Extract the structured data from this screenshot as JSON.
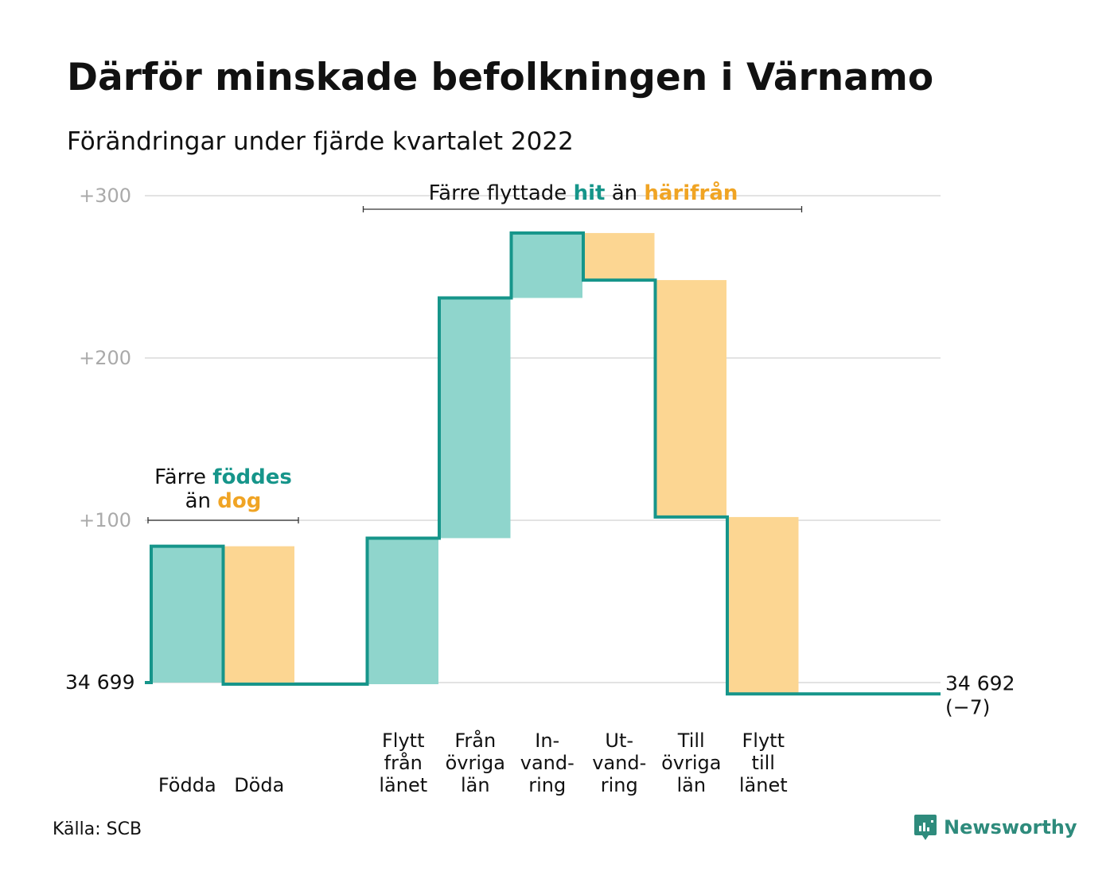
{
  "title": "Därför minskade befolkningen i Värnamo",
  "subtitle": "Förändringar under fjärde kvartalet 2022",
  "source": "Källa: SCB",
  "brand": "Newsworthy",
  "colors": {
    "line": "#16958a",
    "increase": "#8fd5cc",
    "decrease": "#fcd692",
    "teal_text": "#16958a",
    "orange_text": "#f0a424",
    "grid": "#e3e3e3",
    "tick": "#aaaaaa"
  },
  "icons": {
    "brand_logo": "newsworthy-logo-icon"
  },
  "chart_data": {
    "type": "waterfall",
    "title": "Därför minskade befolkningen i Värnamo",
    "subtitle": "Förändringar under fjärde kvartalet 2022",
    "yticks": [
      {
        "value": 100,
        "label": "+100"
      },
      {
        "value": 200,
        "label": "+200"
      },
      {
        "value": 300,
        "label": "+300"
      }
    ],
    "ylim": [
      -10,
      305
    ],
    "start": {
      "population": 34699,
      "label": "34 699"
    },
    "end": {
      "population": 34692,
      "label": "34 692",
      "change_label": "(−7)"
    },
    "steps": [
      {
        "name": "Födda",
        "label_lines": [
          "Födda"
        ],
        "value": 84,
        "kind": "increase"
      },
      {
        "name": "Döda",
        "label_lines": [
          "Döda"
        ],
        "value": -85,
        "kind": "decrease"
      },
      {
        "name": "gap",
        "label_lines": [],
        "value": 0,
        "kind": "gap"
      },
      {
        "name": "Flytt från länet",
        "label_lines": [
          "Flytt",
          "från",
          "länet"
        ],
        "value": 90,
        "kind": "increase"
      },
      {
        "name": "Från övriga län",
        "label_lines": [
          "Från",
          "övriga",
          "län"
        ],
        "value": 148,
        "kind": "increase"
      },
      {
        "name": "Invandring",
        "label_lines": [
          "In-",
          "vand-",
          "ring"
        ],
        "value": 40,
        "kind": "increase"
      },
      {
        "name": "Utvandring",
        "label_lines": [
          "Ut-",
          "vand-",
          "ring"
        ],
        "value": -29,
        "kind": "decrease"
      },
      {
        "name": "Till övriga län",
        "label_lines": [
          "Till",
          "övriga",
          "län"
        ],
        "value": -146,
        "kind": "decrease"
      },
      {
        "name": "Flytt till länet",
        "label_lines": [
          "Flytt",
          "till",
          "länet"
        ],
        "value": -109,
        "kind": "decrease"
      }
    ],
    "annotations": [
      {
        "id": "births",
        "line1": [
          {
            "text": "Färre ",
            "style": "plain"
          },
          {
            "text": "föddes",
            "style": "teal"
          }
        ],
        "line2": [
          {
            "text": "än ",
            "style": "plain"
          },
          {
            "text": "dog",
            "style": "orange"
          }
        ],
        "from_step": 0,
        "to_step": 1
      },
      {
        "id": "migration",
        "line1": [
          {
            "text": "Färre flyttade ",
            "style": "plain"
          },
          {
            "text": "hit",
            "style": "teal"
          },
          {
            "text": " än ",
            "style": "plain"
          },
          {
            "text": "härifrån",
            "style": "orange"
          }
        ],
        "from_step": 3,
        "to_step": 8
      }
    ]
  }
}
